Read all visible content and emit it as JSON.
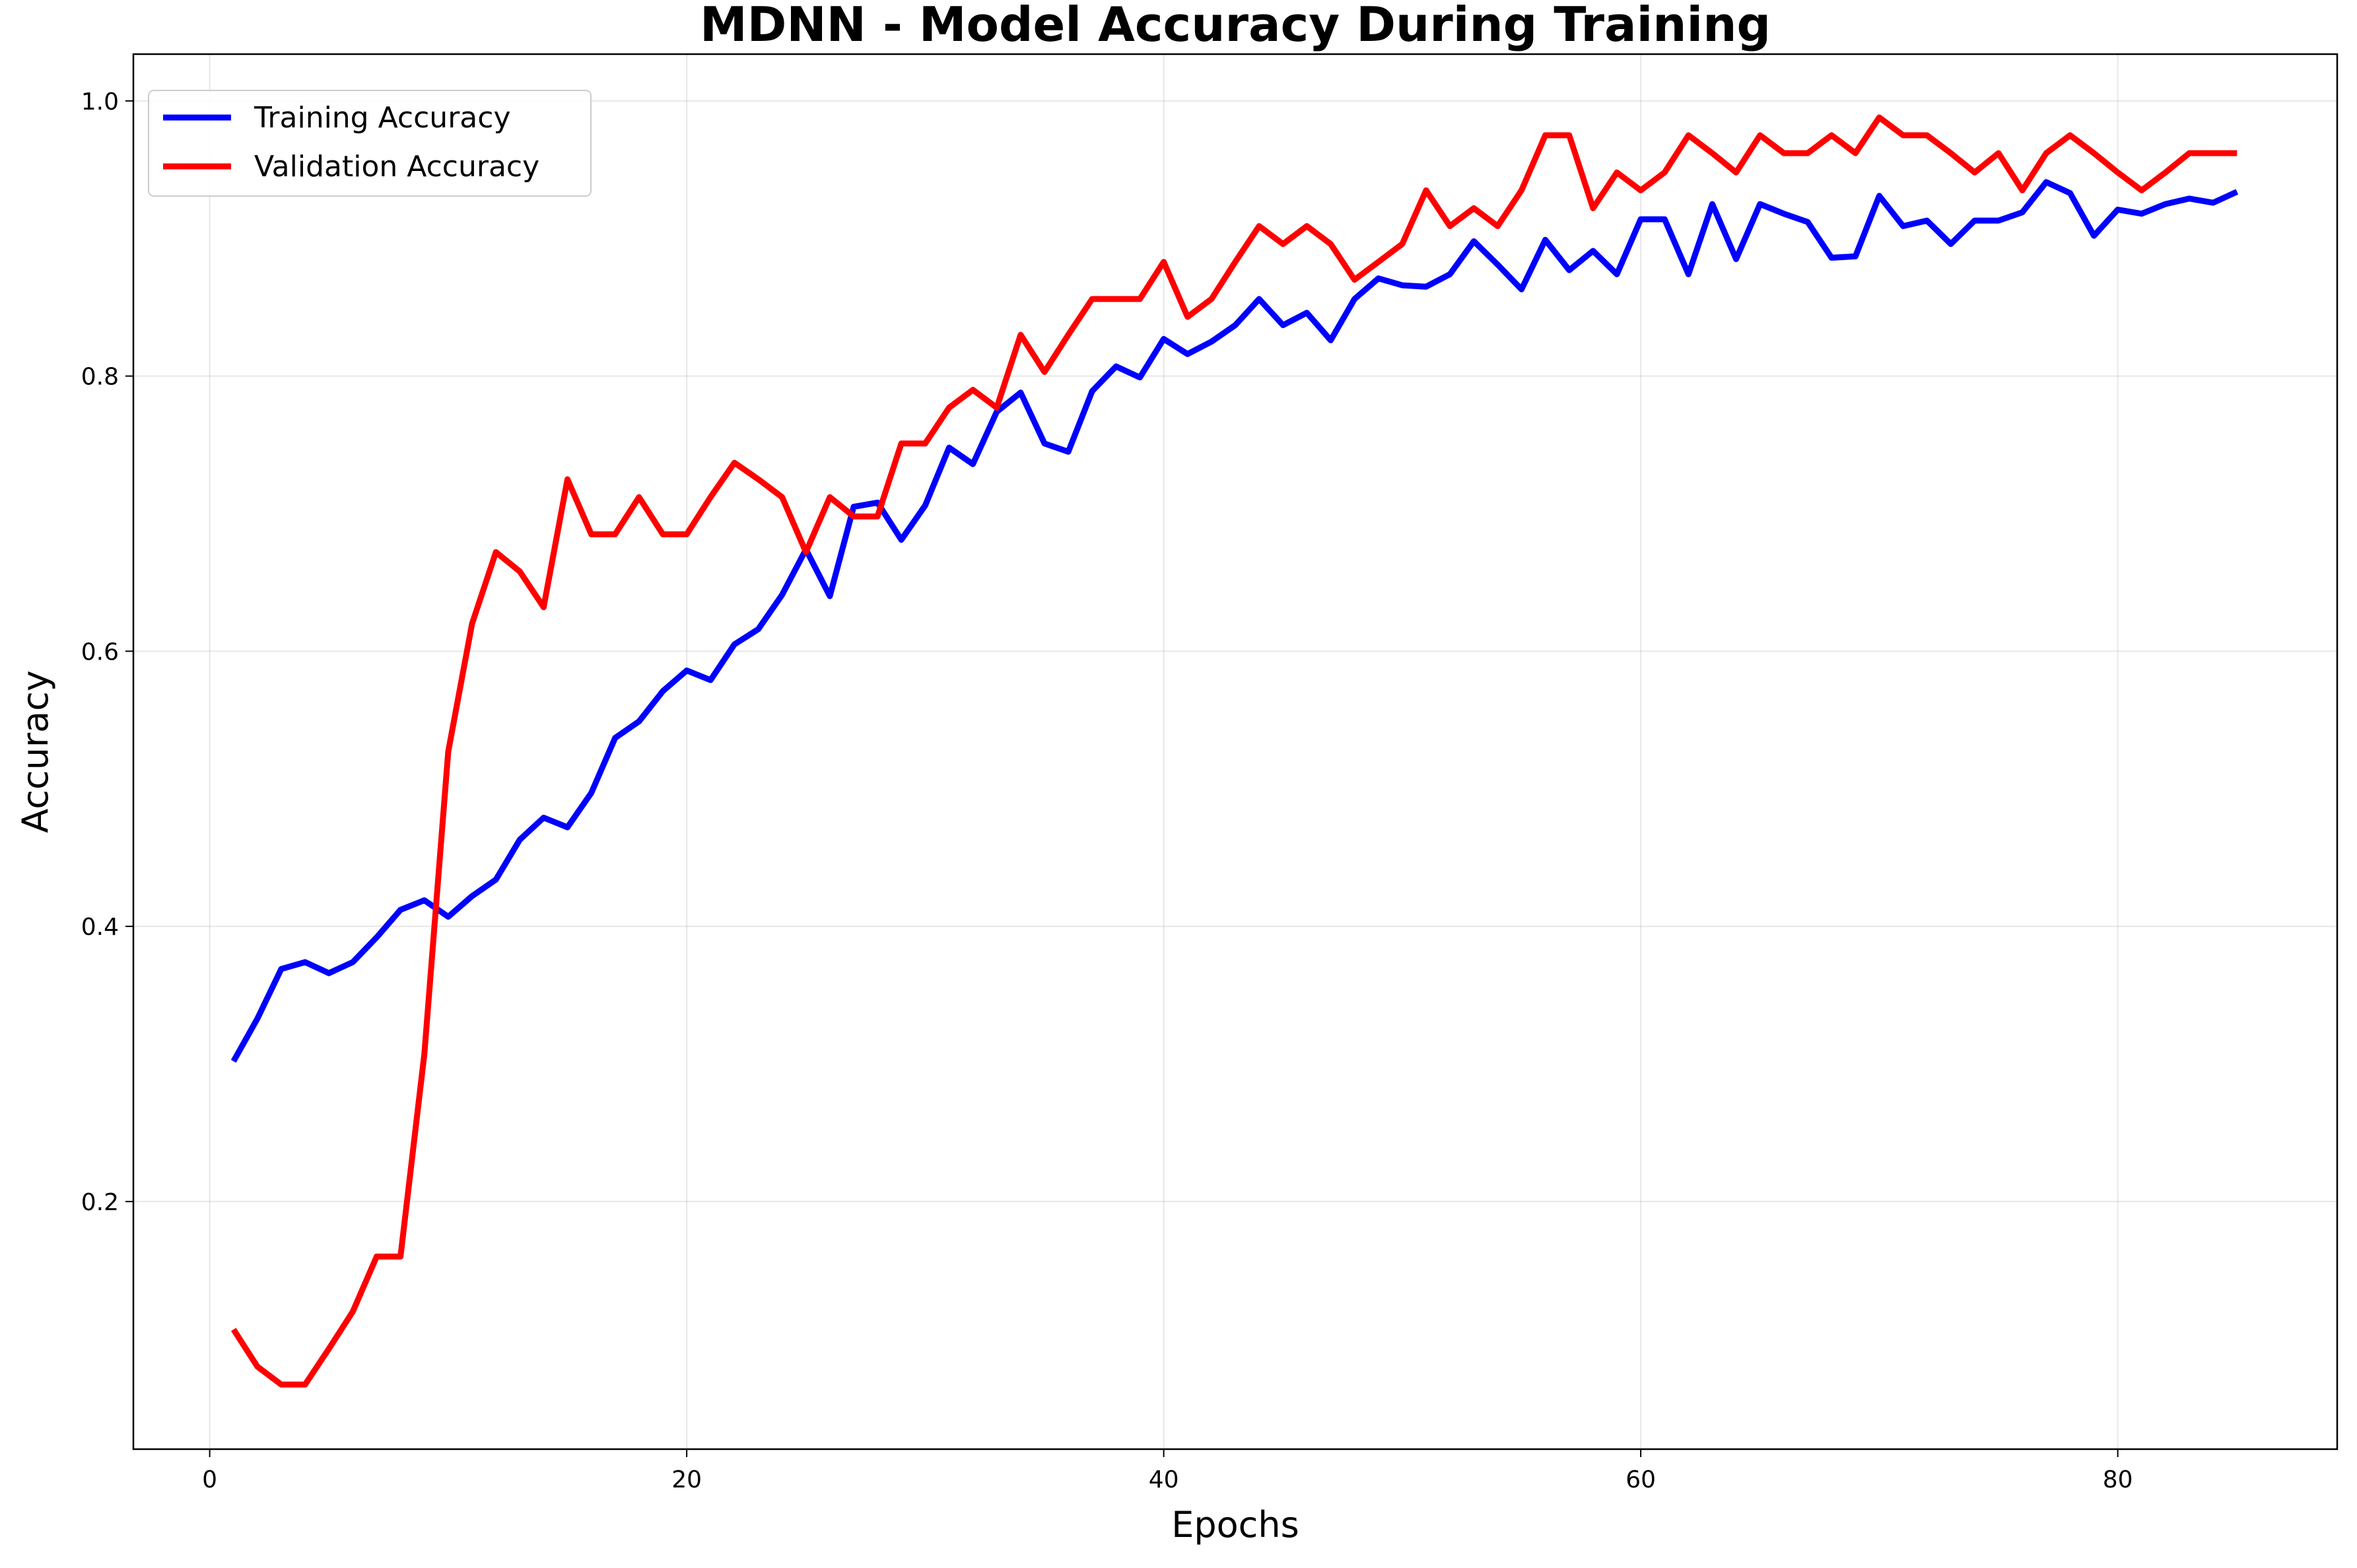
{
  "chart_data": {
    "type": "line",
    "title": "MDNN - Model Accuracy During Training",
    "xlabel": "Epochs",
    "ylabel": "Accuracy",
    "xlim": [
      -3.2,
      89.2
    ],
    "ylim": [
      0.02,
      1.034
    ],
    "xticks": [
      0,
      20,
      40,
      60,
      80
    ],
    "yticks": [
      0.2,
      0.4,
      0.6,
      0.8,
      1.0
    ],
    "xtick_labels": [
      "0",
      "20",
      "40",
      "60",
      "80"
    ],
    "ytick_labels": [
      "0.2",
      "0.4",
      "0.6",
      "0.8",
      "1.0"
    ],
    "grid": true,
    "legend_position": "upper-left",
    "x": [
      1,
      2,
      3,
      4,
      5,
      6,
      7,
      8,
      9,
      10,
      11,
      12,
      13,
      14,
      15,
      16,
      17,
      18,
      19,
      20,
      21,
      22,
      23,
      24,
      25,
      26,
      27,
      28,
      29,
      30,
      31,
      32,
      33,
      34,
      35,
      36,
      37,
      38,
      39,
      40,
      41,
      42,
      43,
      44,
      45,
      46,
      47,
      48,
      49,
      50,
      51,
      52,
      53,
      54,
      55,
      56,
      57,
      58,
      59,
      60,
      61,
      62,
      63,
      64,
      65,
      66,
      67,
      68,
      69,
      70,
      71,
      72,
      73,
      74,
      75,
      76,
      77,
      78,
      79,
      80,
      81,
      82,
      83,
      84,
      85
    ],
    "series": [
      {
        "name": "Training Accuracy",
        "color": "#0000ff",
        "values": [
          0.302,
          0.333,
          0.369,
          0.374,
          0.366,
          0.374,
          0.392,
          0.412,
          0.419,
          0.407,
          0.422,
          0.434,
          0.463,
          0.479,
          0.472,
          0.497,
          0.537,
          0.549,
          0.571,
          0.586,
          0.579,
          0.605,
          0.616,
          0.641,
          0.674,
          0.64,
          0.705,
          0.708,
          0.681,
          0.706,
          0.748,
          0.736,
          0.774,
          0.788,
          0.751,
          0.745,
          0.789,
          0.807,
          0.799,
          0.827,
          0.816,
          0.825,
          0.837,
          0.856,
          0.837,
          0.846,
          0.826,
          0.856,
          0.871,
          0.866,
          0.865,
          0.874,
          0.898,
          0.881,
          0.863,
          0.899,
          0.877,
          0.891,
          0.874,
          0.914,
          0.914,
          0.874,
          0.925,
          0.885,
          0.925,
          0.918,
          0.912,
          0.886,
          0.887,
          0.931,
          0.909,
          0.913,
          0.896,
          0.913,
          0.913,
          0.919,
          0.941,
          0.933,
          0.902,
          0.921,
          0.918,
          0.925,
          0.929,
          0.926,
          0.934
        ]
      },
      {
        "name": "Validation Accuracy",
        "color": "#ff0000",
        "values": [
          0.107,
          0.08,
          0.067,
          0.067,
          0.093,
          0.12,
          0.16,
          0.16,
          0.307,
          0.527,
          0.62,
          0.672,
          0.658,
          0.632,
          0.725,
          0.685,
          0.685,
          0.712,
          0.685,
          0.685,
          0.712,
          0.737,
          0.725,
          0.712,
          0.672,
          0.712,
          0.698,
          0.698,
          0.751,
          0.751,
          0.777,
          0.79,
          0.777,
          0.83,
          0.803,
          0.83,
          0.856,
          0.856,
          0.856,
          0.883,
          0.843,
          0.856,
          0.883,
          0.909,
          0.896,
          0.909,
          0.896,
          0.87,
          0.883,
          0.896,
          0.935,
          0.909,
          0.922,
          0.909,
          0.935,
          0.975,
          0.975,
          0.922,
          0.948,
          0.935,
          0.948,
          0.975,
          0.962,
          0.948,
          0.975,
          0.962,
          0.962,
          0.975,
          0.962,
          0.988,
          0.975,
          0.975,
          0.962,
          0.948,
          0.962,
          0.935,
          0.962,
          0.975,
          0.962,
          0.948,
          0.935,
          0.948,
          0.962,
          0.962,
          0.962
        ]
      }
    ]
  }
}
